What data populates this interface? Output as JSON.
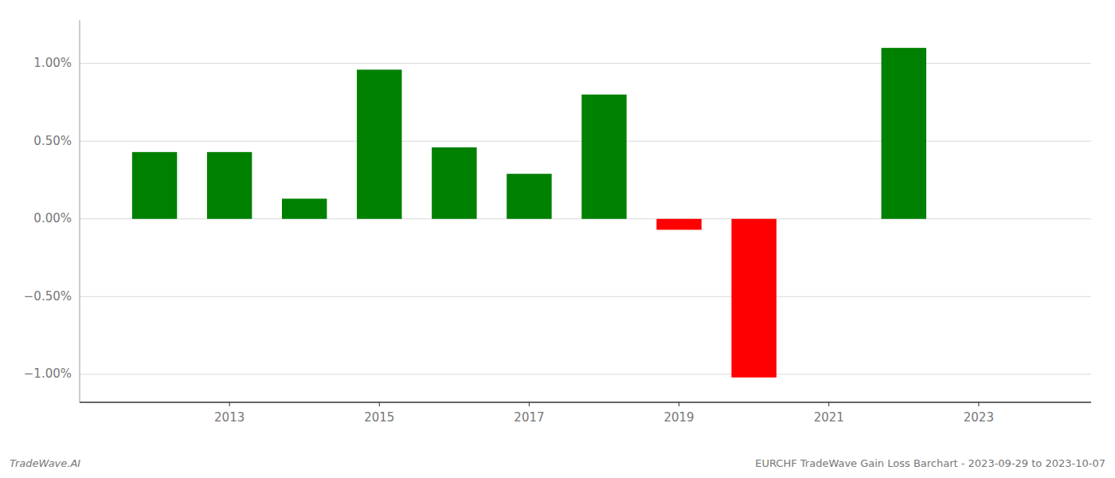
{
  "chart_data": {
    "type": "bar",
    "title": "EURCHF TradeWave Gain Loss Barchart - 2023-09-29 to 2023-10-07",
    "annotations": [
      "TradeWave.AI"
    ],
    "x": [
      2012,
      2013,
      2014,
      2015,
      2016,
      2017,
      2018,
      2019,
      2020,
      2021,
      2022
    ],
    "values": [
      0.43,
      0.43,
      0.13,
      0.96,
      0.46,
      0.29,
      0.8,
      -0.07,
      -1.02,
      0.0,
      1.1
    ],
    "colors": [
      "#008000",
      "#008000",
      "#008000",
      "#008000",
      "#008000",
      "#008000",
      "#008000",
      "#ff0000",
      "#ff0000",
      "#ff0000",
      "#008000"
    ],
    "xlim": [
      2011.0,
      2024.5
    ],
    "xticks": [
      2013,
      2015,
      2017,
      2019,
      2021,
      2023
    ],
    "ylim": [
      -1.18,
      1.28
    ],
    "yticks": [
      {
        "value": -1.0,
        "label": "−1.00%"
      },
      {
        "value": -0.5,
        "label": "−0.50%"
      },
      {
        "value": 0.0,
        "label": "0.00%"
      },
      {
        "value": 0.5,
        "label": "0.50%"
      },
      {
        "value": 1.0,
        "label": "1.00%"
      }
    ],
    "grid": true
  }
}
